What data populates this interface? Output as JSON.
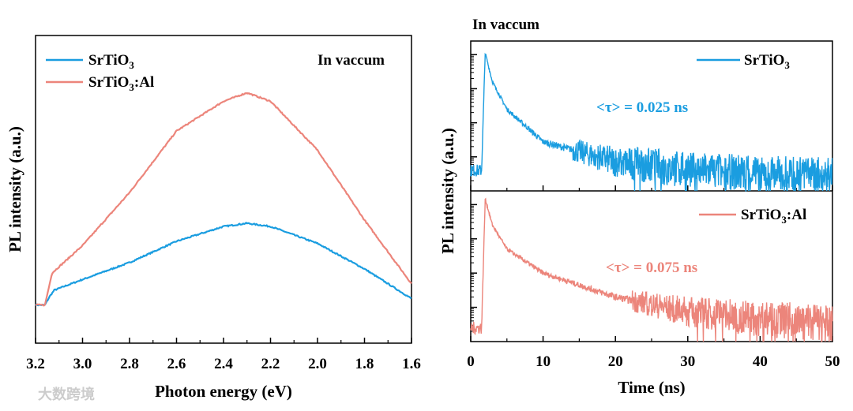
{
  "chart_data": [
    {
      "type": "line",
      "title": "In vaccum",
      "xlabel": "Photon energy (eV)",
      "ylabel": "PL intensity (a.u.)",
      "xlim": [
        3.2,
        1.6
      ],
      "ylim": [
        -0.18,
        1.27
      ],
      "x_ticks": [
        "3.2",
        "3.0",
        "2.8",
        "2.6",
        "2.4",
        "2.2",
        "2.0",
        "1.8",
        "1.6"
      ],
      "legend_position": "top-left",
      "series": [
        {
          "name": "SrTiO3",
          "label_main": "SrTiO",
          "label_sub": "3",
          "label_tail": "",
          "color": "#1a9de0",
          "x": [
            3.2,
            3.16,
            3.14,
            3.12,
            3.0,
            2.8,
            2.6,
            2.4,
            2.3,
            2.2,
            2.0,
            1.8,
            1.6
          ],
          "y": [
            0,
            0,
            0.04,
            0.07,
            0.12,
            0.2,
            0.3,
            0.37,
            0.385,
            0.37,
            0.29,
            0.17,
            0.03
          ]
        },
        {
          "name": "SrTiO3:Al",
          "label_main": "SrTiO",
          "label_sub": "3",
          "label_tail": ":Al",
          "color": "#ec857b",
          "x": [
            3.2,
            3.16,
            3.13,
            3.0,
            2.8,
            2.6,
            2.4,
            2.3,
            2.2,
            2.0,
            1.8,
            1.6
          ],
          "y": [
            0,
            0,
            0.15,
            0.28,
            0.53,
            0.82,
            0.96,
            1.0,
            0.96,
            0.73,
            0.4,
            0.1
          ]
        }
      ]
    },
    {
      "type": "line",
      "title": "In vaccum",
      "xlabel": "Time (ns)",
      "ylabel": "PL intensity (a.u.)",
      "yscale": "log",
      "xlim": [
        0,
        50
      ],
      "ylim_decades": [
        0,
        4.4
      ],
      "x_ticks": [
        "0",
        "10",
        "20",
        "30",
        "40",
        "50"
      ],
      "panels": [
        {
          "name": "SrTiO3",
          "label_main": "SrTiO",
          "label_sub": "3",
          "label_tail": "",
          "color": "#1a9de0",
          "annotation": "<τ> = 0.025 ns",
          "lifetime_ns": 0.025,
          "t": [
            0,
            1.5,
            2.0,
            3,
            5,
            10,
            20,
            30,
            50
          ],
          "log_intensity": [
            0.6,
            0.6,
            4.05,
            3.2,
            2.4,
            1.44,
            0.86,
            0.6,
            0.45
          ]
        },
        {
          "name": "SrTiO3:Al",
          "label_main": "SrTiO",
          "label_sub": "3",
          "label_tail": ":Al",
          "color": "#ec857b",
          "annotation": "<τ> = 0.075 ns",
          "lifetime_ns": 0.075,
          "t": [
            0,
            1.5,
            2.0,
            3,
            5,
            10,
            20,
            30,
            50
          ],
          "log_intensity": [
            0.4,
            0.4,
            4.17,
            3.4,
            2.7,
            2.0,
            1.3,
            0.87,
            0.5
          ]
        }
      ]
    }
  ],
  "watermark": "大数跨境"
}
